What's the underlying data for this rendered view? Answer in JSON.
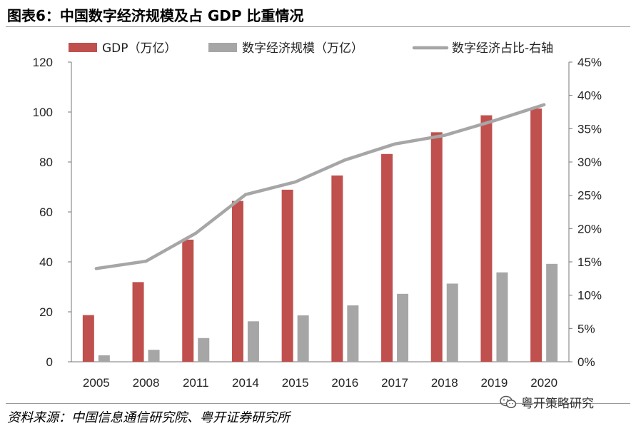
{
  "header": {
    "title": "图表6：中国数字经济规模及占 GDP 比重情况"
  },
  "footer": {
    "source": "资料来源：中国信息通信研究院、粤开证券研究所"
  },
  "watermark": {
    "text": "粤开策略研究",
    "icon": "wechat-icon"
  },
  "colors": {
    "gdp": "#c0504d",
    "digital": "#a6a6a6",
    "share": "#a6a6a6"
  },
  "chart_data": {
    "type": "bar",
    "categories": [
      "2005",
      "2008",
      "2011",
      "2014",
      "2015",
      "2016",
      "2017",
      "2018",
      "2019",
      "2020"
    ],
    "series": [
      {
        "name": "GDP（万亿）",
        "type": "bar",
        "axis": "left",
        "values": [
          18.7,
          31.9,
          48.9,
          64.4,
          68.9,
          74.6,
          83.2,
          91.9,
          98.7,
          101.4
        ]
      },
      {
        "name": "数字经济规模（万亿）",
        "type": "bar",
        "axis": "left",
        "values": [
          2.6,
          4.8,
          9.5,
          16.2,
          18.6,
          22.6,
          27.2,
          31.3,
          35.8,
          39.2
        ]
      },
      {
        "name": "数字经济占比-右轴",
        "type": "line",
        "axis": "right",
        "values": [
          14.0,
          15.1,
          19.3,
          25.1,
          27.0,
          30.3,
          32.7,
          34.0,
          36.2,
          38.6
        ]
      }
    ],
    "left_axis": {
      "ylim": [
        0,
        120
      ],
      "ticks": [
        "0",
        "20",
        "40",
        "60",
        "80",
        "100",
        "120"
      ]
    },
    "right_axis": {
      "ylim": [
        0,
        45
      ],
      "ticks": [
        "0%",
        "5%",
        "10%",
        "15%",
        "20%",
        "25%",
        "30%",
        "35%",
        "40%",
        "45%"
      ]
    },
    "grid": false,
    "legend_position": "top"
  }
}
